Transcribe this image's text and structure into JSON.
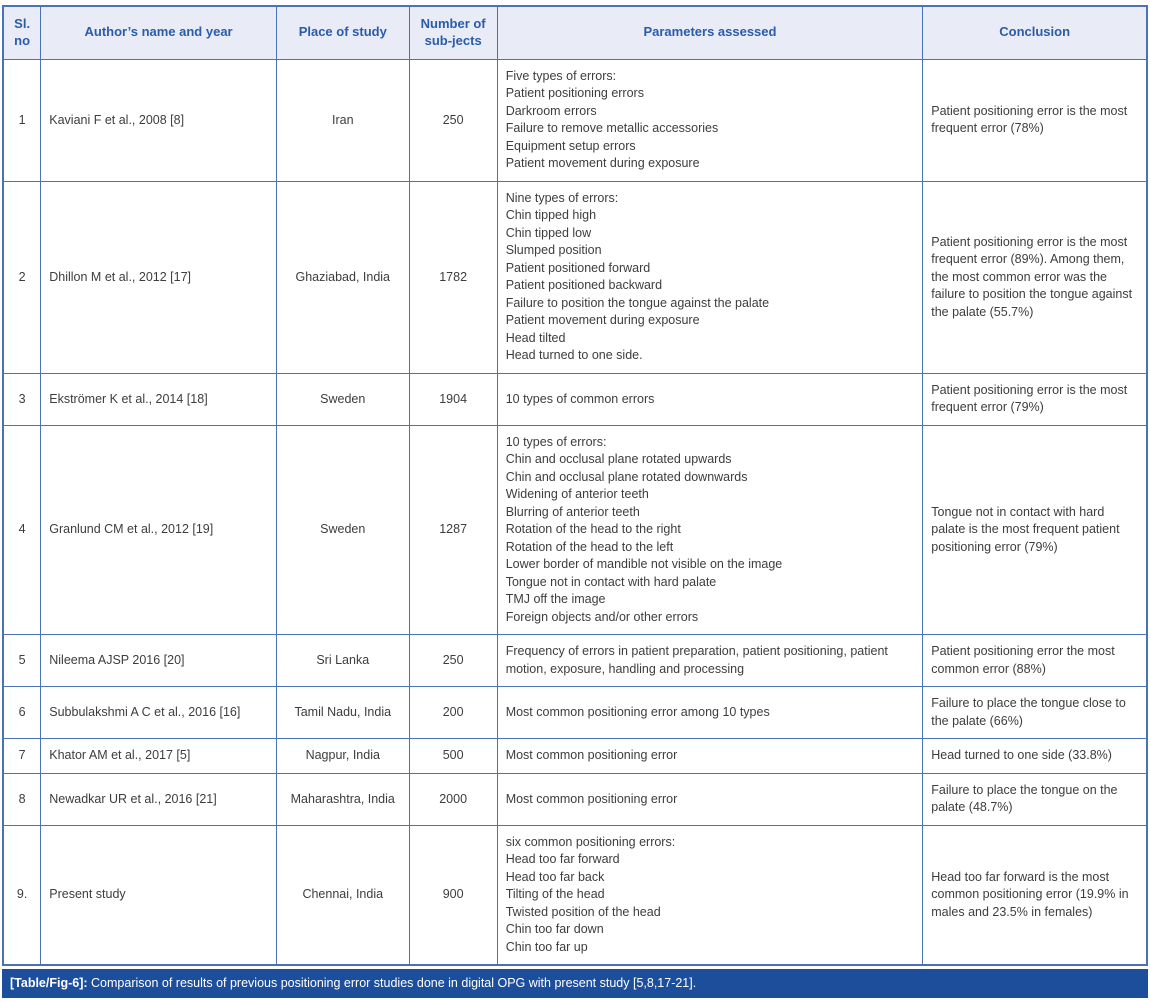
{
  "colors": {
    "border": "#4a72b8",
    "header_bg": "#e9ebf7",
    "header_text": "#2a5caa",
    "body_text": "#3d3d3d",
    "caption_bg": "#1c4e9b",
    "caption_text": "#ffffff"
  },
  "table": {
    "headers": [
      "Sl. no",
      "Author’s name and year",
      "Place of study",
      "Number of sub-jects",
      "Parameters assessed",
      "Conclusion"
    ],
    "rows": [
      {
        "sl": "1",
        "author": "Kaviani F et al., 2008 [8]",
        "place": "Iran",
        "subjects": "250",
        "parameters": "Five types of errors:\nPatient positioning errors\nDarkroom errors\nFailure to remove metallic accessories\nEquipment setup errors\nPatient movement during exposure",
        "conclusion": "Patient positioning error is the most frequent error (78%)"
      },
      {
        "sl": "2",
        "author": "Dhillon M et al., 2012 [17]",
        "place": "Ghaziabad, India",
        "subjects": "1782",
        "parameters": "Nine types of errors:\nChin tipped high\nChin tipped low\nSlumped position\nPatient positioned forward\nPatient positioned backward\nFailure to position the tongue against the palate\nPatient movement during exposure\nHead tilted\nHead turned to one side.",
        "conclusion": "Patient positioning error is the most frequent error (89%). Among them, the most common error was the failure to position the tongue against the palate (55.7%)"
      },
      {
        "sl": "3",
        "author": "Ekströmer K et al., 2014 [18]",
        "place": "Sweden",
        "subjects": "1904",
        "parameters": "10 types of common errors",
        "conclusion": "Patient positioning error is the most frequent error (79%)"
      },
      {
        "sl": "4",
        "author": "Granlund CM et al., 2012 [19]",
        "place": "Sweden",
        "subjects": "1287",
        "parameters": "10 types of errors:\nChin and occlusal plane rotated upwards\nChin and occlusal plane rotated downwards\nWidening of anterior teeth\nBlurring of anterior teeth\nRotation of the head to the right\nRotation of the head to the left\nLower border of mandible not visible on the image\nTongue not in contact with hard palate\nTMJ off the image\nForeign objects and/or other errors",
        "conclusion": "Tongue not in contact with hard palate is the most frequent patient positioning error (79%)"
      },
      {
        "sl": "5",
        "author": "Nileema AJSP 2016 [20]",
        "place": "Sri Lanka",
        "subjects": "250",
        "parameters": "Frequency of errors in patient preparation, patient positioning, patient motion, exposure, handling and processing",
        "conclusion": "Patient positioning error the most common error (88%)"
      },
      {
        "sl": "6",
        "author": "Subbulakshmi A C et al., 2016 [16]",
        "place": "Tamil Nadu, India",
        "subjects": "200",
        "parameters": "Most common positioning error among 10 types",
        "conclusion": "Failure to place the tongue close to the palate (66%)"
      },
      {
        "sl": "7",
        "author": "Khator AM et al., 2017 [5]",
        "place": "Nagpur, India",
        "subjects": "500",
        "parameters": "Most common positioning error",
        "conclusion": "Head turned to one side (33.8%)"
      },
      {
        "sl": "8",
        "author": "Newadkar UR et al., 2016 [21]",
        "place": "Maharashtra, India",
        "subjects": "2000",
        "parameters": "Most common positioning error",
        "conclusion": "Failure to place the tongue on the palate (48.7%)"
      },
      {
        "sl": "9.",
        "author": "Present study",
        "place": "Chennai, India",
        "subjects": "900",
        "parameters": "six common positioning errors:\nHead too far forward\nHead too far back\nTilting of the head\nTwisted position of the head\nChin too far down\nChin too far up",
        "conclusion": "Head too far forward is the most common positioning error (19.9% in males and 23.5% in females)"
      }
    ]
  },
  "caption": {
    "label": "[Table/Fig-6]:",
    "text": "Comparison of results of previous positioning error studies done in digital OPG with present study [5,8,17-21]."
  }
}
